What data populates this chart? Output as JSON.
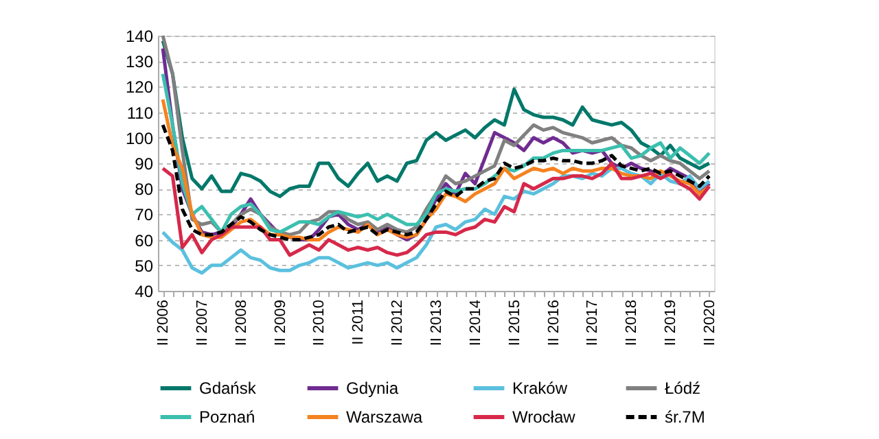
{
  "chart_data": {
    "type": "line",
    "categories": [
      "II 2006",
      null,
      null,
      null,
      "II 2007",
      null,
      null,
      null,
      "II 2008",
      null,
      null,
      null,
      "II 2009",
      null,
      null,
      null,
      "II 2010",
      null,
      null,
      null,
      "II 2011",
      null,
      null,
      null,
      "II 2012",
      null,
      null,
      null,
      "II 2013",
      null,
      null,
      null,
      "II 2014",
      null,
      null,
      null,
      "II 2015",
      null,
      null,
      null,
      "II 2016",
      null,
      null,
      null,
      "II 2017",
      null,
      null,
      null,
      "II 2018",
      null,
      null,
      null,
      "II 2019",
      null,
      null,
      null,
      "II 2020"
    ],
    "series": [
      {
        "name": "Gdańsk",
        "color": "#00786a",
        "values": [
          138,
          125,
          100,
          84,
          80,
          85,
          79,
          79,
          86,
          85,
          83,
          79,
          77,
          80,
          81,
          81,
          90,
          90,
          84,
          81,
          86,
          90,
          83,
          85,
          83,
          90,
          91,
          99,
          102,
          99,
          101,
          103,
          100,
          104,
          107,
          105,
          119,
          111,
          109,
          108,
          108,
          107,
          105,
          112,
          107,
          106,
          105,
          106,
          103,
          98,
          96,
          93,
          97,
          92,
          90,
          88,
          90
        ]
      },
      {
        "name": "Gdynia",
        "color": "#6f2c91",
        "values": [
          135,
          105,
          80,
          70,
          63,
          62,
          63,
          65,
          70,
          76,
          70,
          66,
          62,
          61,
          60,
          60,
          64,
          69,
          70,
          66,
          64,
          66,
          63,
          65,
          62,
          60,
          62,
          68,
          76,
          82,
          78,
          86,
          82,
          92,
          102,
          100,
          98,
          95,
          100,
          98,
          100,
          98,
          94,
          95,
          94,
          95,
          90,
          88,
          90,
          88,
          87,
          85,
          88,
          86,
          84,
          78,
          82
        ]
      },
      {
        "name": "Kraków",
        "color": "#5bc0de",
        "values": [
          63,
          59,
          56,
          49,
          47,
          50,
          50,
          53,
          56,
          53,
          52,
          49,
          48,
          48,
          50,
          51,
          53,
          53,
          51,
          49,
          50,
          51,
          50,
          51,
          49,
          51,
          53,
          58,
          65,
          66,
          64,
          67,
          68,
          72,
          70,
          77,
          76,
          79,
          78,
          80,
          82,
          85,
          85,
          84,
          86,
          85,
          88,
          88,
          86,
          85,
          82,
          86,
          83,
          82,
          85,
          80,
          83
        ]
      },
      {
        "name": "Łódź",
        "color": "#808080",
        "values": [
          140,
          125,
          95,
          68,
          66,
          67,
          63,
          66,
          70,
          72,
          70,
          65,
          63,
          62,
          63,
          67,
          68,
          71,
          71,
          68,
          66,
          67,
          64,
          66,
          64,
          63,
          65,
          72,
          78,
          85,
          82,
          83,
          85,
          87,
          89,
          99,
          97,
          101,
          105,
          103,
          104,
          102,
          101,
          100,
          98,
          99,
          100,
          97,
          96,
          93,
          91,
          93,
          91,
          90,
          87,
          84,
          87
        ]
      },
      {
        "name": "Poznań",
        "color": "#3cbfae",
        "values": [
          125,
          105,
          82,
          70,
          73,
          68,
          63,
          70,
          73,
          74,
          70,
          64,
          63,
          65,
          67,
          67,
          66,
          69,
          71,
          70,
          69,
          70,
          68,
          70,
          68,
          66,
          66,
          70,
          78,
          80,
          79,
          80,
          80,
          82,
          85,
          88,
          87,
          89,
          92,
          92,
          94,
          95,
          95,
          95,
          95,
          95,
          96,
          97,
          92,
          93,
          96,
          98,
          92,
          96,
          93,
          90,
          94
        ]
      },
      {
        "name": "Warszawa",
        "color": "#f58220",
        "values": [
          115,
          97,
          88,
          70,
          62,
          61,
          61,
          64,
          67,
          68,
          65,
          62,
          62,
          61,
          61,
          60,
          60,
          63,
          65,
          64,
          63,
          66,
          62,
          64,
          62,
          61,
          62,
          68,
          72,
          78,
          77,
          75,
          78,
          80,
          82,
          88,
          84,
          86,
          88,
          87,
          88,
          86,
          88,
          87,
          87,
          88,
          88,
          86,
          85,
          85,
          84,
          87,
          85,
          83,
          82,
          78,
          81
        ]
      },
      {
        "name": "Wrocław",
        "color": "#d6294a",
        "values": [
          88,
          85,
          57,
          62,
          55,
          60,
          62,
          65,
          65,
          65,
          65,
          60,
          60,
          54,
          56,
          58,
          56,
          60,
          58,
          56,
          57,
          56,
          57,
          55,
          54,
          55,
          58,
          62,
          63,
          63,
          62,
          64,
          65,
          68,
          67,
          73,
          71,
          82,
          80,
          82,
          84,
          84,
          85,
          85,
          84,
          86,
          90,
          84,
          84,
          85,
          86,
          84,
          86,
          82,
          80,
          76,
          81
        ]
      },
      {
        "name": "śr.7M",
        "color": "#000000",
        "line_style": "dashed",
        "values": [
          105,
          95,
          72,
          64,
          62,
          62,
          63,
          66,
          69,
          67,
          64,
          62,
          61,
          60,
          60,
          61,
          62,
          65,
          66,
          63,
          64,
          65,
          62,
          64,
          63,
          62,
          63,
          68,
          74,
          79,
          77,
          80,
          80,
          83,
          84,
          90,
          88,
          89,
          91,
          91,
          92,
          91,
          91,
          90,
          90,
          91,
          93,
          89,
          88,
          87,
          88,
          86,
          87,
          85,
          83,
          81,
          85
        ]
      }
    ],
    "ylim": [
      40,
      140
    ],
    "yticks": [
      40,
      50,
      60,
      70,
      80,
      90,
      100,
      110,
      120,
      130,
      140
    ],
    "grid": "y",
    "legend": "bottom",
    "line_style": "solid"
  }
}
